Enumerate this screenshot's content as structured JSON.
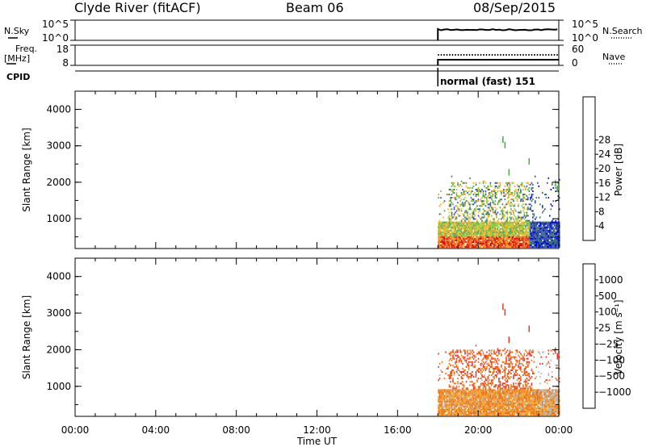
{
  "header": {
    "title": "Clyde River (fitACF)",
    "beam": "Beam 06",
    "date": "08/Sep/2015"
  },
  "strip_labels": {
    "nsky": "N.Sky",
    "nsearch": "N.Search",
    "freq": "Freq.",
    "freq_unit": "[MHz]",
    "nave": "Nave",
    "cpid": "CPID",
    "cpid_value": "normal (fast) 151"
  },
  "chart_data": [
    {
      "type": "line",
      "panel": "noise",
      "left_ticks": [
        "10^5",
        "10^0"
      ],
      "right_ticks": [
        "10^5",
        "10^0"
      ],
      "series": [
        {
          "name": "N.Sky",
          "style": "solid"
        },
        {
          "name": "N.Search",
          "style": "dotted"
        }
      ],
      "x_start": "18:00",
      "x_end": "24:00"
    },
    {
      "type": "line",
      "panel": "frequency",
      "left_ticks": [
        "18",
        "8"
      ],
      "right_ticks": [
        "60",
        "0"
      ],
      "series": [
        {
          "name": "Freq.",
          "style": "solid"
        },
        {
          "name": "Nave",
          "style": "dotted"
        }
      ],
      "x_start": "18:00",
      "x_end": "24:00"
    },
    {
      "type": "heatmap",
      "panel": "power",
      "ylabel": "Slant Range [km]",
      "y_ticks": [
        "4000",
        "3000",
        "2000",
        "1000"
      ],
      "ylim": [
        180,
        4500
      ],
      "x_ticks": [
        "00:00",
        "04:00",
        "08:00",
        "12:00",
        "16:00",
        "20:00",
        "00:00"
      ],
      "xlim_hours": [
        0,
        24
      ],
      "data_start_hour": 18,
      "colorbar_label": "Power [dB]",
      "colorbar_ticks": [
        "28",
        "24",
        "20",
        "16",
        "12",
        "8",
        "4"
      ],
      "colorscale": [
        "#0000e6",
        "#2f4fb4",
        "#3b7a62",
        "#4aa84a",
        "#7ccf2a",
        "#e8c020",
        "#f5a020",
        "#f07010",
        "#e83820",
        "#e00000"
      ]
    },
    {
      "type": "heatmap",
      "panel": "velocity",
      "ylabel": "Slant Range [km]",
      "y_ticks": [
        "4000",
        "3000",
        "2000",
        "1000"
      ],
      "ylim": [
        180,
        4500
      ],
      "x_ticks": [
        "00:00",
        "04:00",
        "08:00",
        "12:00",
        "16:00",
        "20:00",
        "00:00"
      ],
      "xlim_hours": [
        0,
        24
      ],
      "data_start_hour": 18,
      "colorbar_label": "Velocity [m s⁻¹]",
      "colorbar_ticks": [
        "1000",
        "500",
        "100",
        "25",
        "−25",
        "−100",
        "−500",
        "−1000"
      ],
      "colorscale": [
        "#2040b0",
        "#2f6fb0",
        "#3a8a70",
        "#4aa84a",
        "#b8b8b8",
        "#f5a020",
        "#f07010",
        "#e83820",
        "#e00000"
      ]
    }
  ],
  "xlabel": "Time UT"
}
